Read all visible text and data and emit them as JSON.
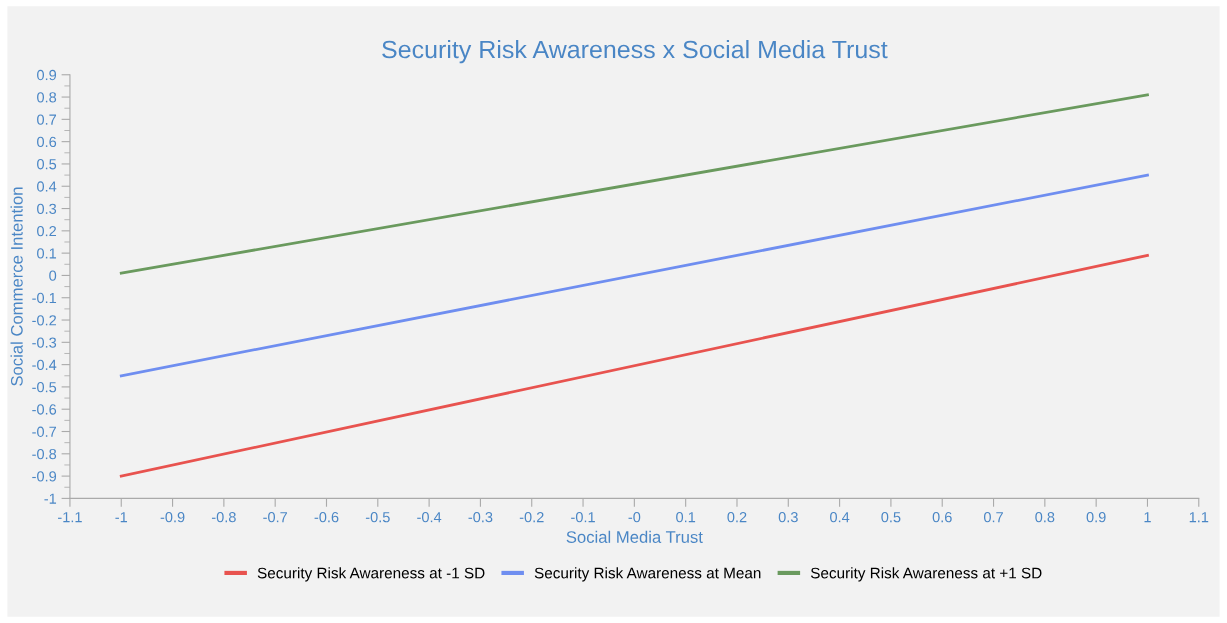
{
  "chart_data": {
    "type": "line",
    "title": "Security Risk Awareness x Social Media Trust",
    "xlabel": "Social Media Trust",
    "ylabel": "Social Commerce Intention",
    "x": [
      -1,
      1
    ],
    "series": [
      {
        "name": "Security Risk Awareness at -1 SD",
        "color": "#e8534f",
        "values": [
          -0.9,
          0.09
        ]
      },
      {
        "name": "Security Risk Awareness at Mean",
        "color": "#6f8ef0",
        "values": [
          -0.45,
          0.45
        ]
      },
      {
        "name": "Security Risk Awareness at +1 SD",
        "color": "#6a9a5e",
        "values": [
          0.01,
          0.81
        ]
      }
    ],
    "xlim": [
      -1.1,
      1.1
    ],
    "xticks": [
      -1.1,
      -1,
      -0.9,
      -0.8,
      -0.7,
      -0.6,
      -0.5,
      -0.4,
      -0.3,
      -0.2,
      -0.1,
      {
        "value": 0,
        "label": "-0"
      },
      0.1,
      0.2,
      0.3,
      0.4,
      0.5,
      0.6,
      0.7,
      0.8,
      0.9,
      1,
      1.1
    ],
    "ylim": [
      -1,
      0.9
    ],
    "yticks": [
      -1,
      -0.9,
      -0.8,
      -0.7,
      -0.6,
      -0.5,
      -0.4,
      -0.3,
      -0.2,
      -0.1,
      0,
      0.1,
      0.2,
      0.3,
      0.4,
      0.5,
      0.6,
      0.7,
      0.8,
      0.9
    ],
    "grid": false,
    "legend": "bottom",
    "marker": "none",
    "line_style": "solid"
  }
}
